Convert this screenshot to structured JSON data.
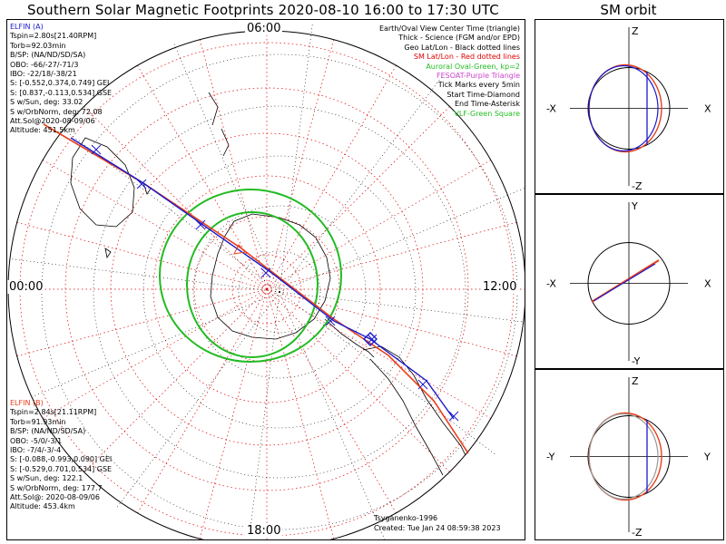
{
  "title": "Southern Solar Magnetic Footprints 2020-08-10 16:00 to 17:30 UTC",
  "sm_title": "SM orbit",
  "mlt_labels": {
    "top": "06:00",
    "left": "00:00",
    "right": "12:00",
    "bottom": "18:00"
  },
  "elfin_a": {
    "color": "#1a1acc",
    "lines": [
      "ELFIN (A)",
      "Tspin=2.80s[21.40RPM]",
      "Torb=92.03min",
      "B/SP: (NA/ND/SD/SA)",
      "OBO: -66/-27/-71/3",
      "IBO: -22/18/-38/21",
      "S: [-0.552,0.374,0.749] GEI",
      "S: [0.837,-0.113,0.534] GSE",
      "S w/Sun, deg: 33.02",
      "S w/OrbNorm, deg: 72.08",
      "Att.Sol@2020-08-09/06",
      "Altitude: 451.5km"
    ]
  },
  "elfin_b": {
    "color": "#e8401c",
    "lines": [
      "ELFIN (B)",
      "Tspin=2.84s[21.11RPM]",
      "Torb=91.93min",
      "B/SP: (NA/ND/SD/SA)",
      "OBO: -5/0/-3/1",
      "IBO: -7/4/-3/-4",
      "S: [-0.088,-0.993,0.090] GEI",
      "S: [-0.529,0.701,0.534] GSE",
      "S w/Sun, deg: 122.1",
      "S w/OrbNorm, deg: 177.7",
      "Att.Sol@: 2020-08-09/06",
      "Altitude: 453.4km"
    ]
  },
  "legend": [
    {
      "text": "Earth/Oval View Center Time (triangle)",
      "color": "#000000"
    },
    {
      "text": "Thick - Science (FGM and/or EPD)",
      "color": "#000000"
    },
    {
      "text": "Geo Lat/Lon - Black dotted lines",
      "color": "#000000"
    },
    {
      "text": "SM Lat/Lon - Red dotted lines",
      "color": "#e00000"
    },
    {
      "text": "Auroral Oval-Green, kp=2",
      "color": "#22bb22"
    },
    {
      "text": "FESOAT-Purple Triangle",
      "color": "#cc44cc"
    },
    {
      "text": "Tick Marks every 5min",
      "color": "#000000"
    },
    {
      "text": "Start Time-Diamond",
      "color": "#000000"
    },
    {
      "text": "End Time-Asterisk",
      "color": "#000000"
    },
    {
      "text": "VLF-Green Square",
      "color": "#22bb22"
    }
  ],
  "footer": {
    "model": "Tsyganenko-1996",
    "created": "Created: Tue Jan 24 08:59:38 2023"
  },
  "sm_panels": [
    {
      "top": "Z",
      "bottom": "-Z",
      "left": "-X",
      "right": "X"
    },
    {
      "top": "Y",
      "bottom": "-Y",
      "left": "-X",
      "right": "X"
    },
    {
      "top": "Z",
      "bottom": "-Z",
      "left": "-Y",
      "right": "Y"
    }
  ],
  "colors": {
    "elfin_a": "#1a1acc",
    "elfin_b": "#e8401c",
    "oval": "#22bb22",
    "sm_grid": "#e00000",
    "geo_grid": "#000000"
  }
}
